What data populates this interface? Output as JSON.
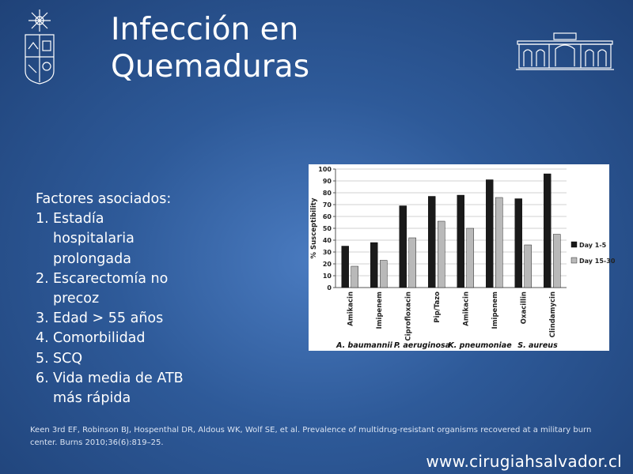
{
  "slide": {
    "title_line1": "Infección en",
    "title_line2": "Quemaduras",
    "factors_heading": "Factores asociados:",
    "factors": [
      {
        "num": "1.",
        "text": "Estadía hospitalaria prolongada"
      },
      {
        "num": "2.",
        "text": "Escarectomía no precoz"
      },
      {
        "num": "3.",
        "text": "Edad > 55 años"
      },
      {
        "num": "4.",
        "text": "Comorbilidad"
      },
      {
        "num": "5.",
        "text": "SCQ"
      },
      {
        "num": "6.",
        "text": "Vida media de ATB más rápida"
      }
    ],
    "citation": "Keen 3rd EF, Robinson BJ, Hospenthal DR, Aldous WK, Wolf SE, et al. Prevalence of multidrug-resistant organisms recovered at a military burn center. Burns 2010;36(6):819–25.",
    "website": "www.cirugiahsalvador.cl",
    "colors": {
      "background": "#2e5a99",
      "text": "#ffffff"
    }
  },
  "chart_data": {
    "type": "bar",
    "ylabel": "% Susceptibility",
    "ylim": [
      0,
      100
    ],
    "yticks": [
      0,
      10,
      20,
      30,
      40,
      50,
      60,
      70,
      80,
      90,
      100
    ],
    "categories": [
      "Amikacin",
      "Imipenem",
      "Ciprofloxacin",
      "Pip/Tazo",
      "Amikacin",
      "Imipenem",
      "Oxacillin",
      "Clindamycin"
    ],
    "groups": [
      {
        "label": "A. baumannii",
        "span": 2
      },
      {
        "label": "P. aeruginosa",
        "span": 2
      },
      {
        "label": "K. pneumoniae",
        "span": 2
      },
      {
        "label": "S. aureus",
        "span": 2
      }
    ],
    "series": [
      {
        "name": "Day 1-5",
        "color": "#1a1a1a",
        "values": [
          35,
          38,
          69,
          77,
          78,
          91,
          75,
          96
        ]
      },
      {
        "name": "Day 15-30",
        "color": "#b9b9b9",
        "values": [
          18,
          23,
          42,
          56,
          50,
          76,
          36,
          45
        ]
      }
    ],
    "legend_position": "right",
    "grid": true
  }
}
